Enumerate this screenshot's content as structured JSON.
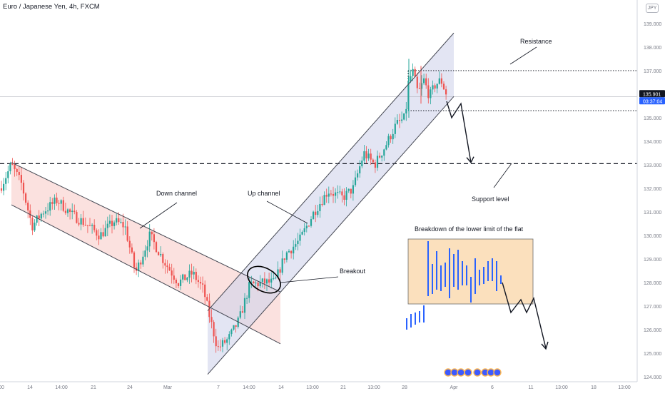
{
  "header": {
    "title": "Euro / Japanese Yen, 4h, FXCM",
    "currency_badge": "JPY"
  },
  "price_scale": {
    "ticks": [
      "139.000",
      "138.000",
      "137.000",
      "136.000",
      "135.000",
      "134.000",
      "133.000",
      "132.000",
      "131.000",
      "130.000",
      "129.000",
      "128.000",
      "127.000",
      "126.000",
      "125.000",
      "124.000"
    ],
    "last_price": "135.901",
    "countdown": "03:37:04"
  },
  "time_axis": {
    "ticks": [
      "00",
      "14",
      "14:00",
      "21",
      "24",
      "Mar",
      "7",
      "14:00",
      "14",
      "13:00",
      "21",
      "13:00",
      "28",
      "Apr",
      "6",
      "11",
      "13:00",
      "18",
      "13:00"
    ]
  },
  "annotations": {
    "down_channel": "Down channel",
    "up_channel": "Up channel",
    "breakout": "Breakout",
    "resistance": "Resistance",
    "support_level": "Support level",
    "flat_breakdown": "Breakdown of the lower limit of the flat"
  },
  "colors": {
    "up_candle": "#26a69a",
    "down_candle": "#ef5350",
    "down_channel_fill": "#f7c9c5",
    "up_channel_fill": "#d1d4eb",
    "flat_box_fill": "#fbe0bd",
    "scheme_bars": "#2962ff",
    "price_badge": "#131722",
    "countdown_badge": "#2962ff"
  },
  "chart_data": {
    "type": "candlestick",
    "title": "Euro / Japanese Yen, 4h, FXCM",
    "xlabel": "",
    "ylabel": "",
    "ylim": [
      123.9,
      139.7
    ],
    "grid": false,
    "x_ticks": [
      "00",
      "14",
      "14:00",
      "21",
      "24",
      "Mar",
      "7",
      "14:00",
      "14",
      "13:00",
      "21",
      "13:00",
      "28",
      "Apr",
      "6",
      "11",
      "13:00",
      "18",
      "13:00"
    ],
    "y_ticks": [
      124,
      125,
      126,
      127,
      128,
      129,
      130,
      131,
      132,
      133,
      134,
      135,
      136,
      137,
      138,
      139
    ],
    "last_price": 135.901,
    "price_path": [
      {
        "x": 0,
        "y": 132.0
      },
      {
        "x": 16,
        "y": 133.0
      },
      {
        "x": 30,
        "y": 132.2
      },
      {
        "x": 45,
        "y": 130.4
      },
      {
        "x": 60,
        "y": 131.0
      },
      {
        "x": 80,
        "y": 131.5
      },
      {
        "x": 100,
        "y": 130.9
      },
      {
        "x": 120,
        "y": 130.5
      },
      {
        "x": 140,
        "y": 130.0
      },
      {
        "x": 160,
        "y": 130.6
      },
      {
        "x": 175,
        "y": 130.4
      },
      {
        "x": 190,
        "y": 128.4
      },
      {
        "x": 210,
        "y": 130.0
      },
      {
        "x": 230,
        "y": 128.9
      },
      {
        "x": 250,
        "y": 128.0
      },
      {
        "x": 270,
        "y": 128.4
      },
      {
        "x": 285,
        "y": 127.7
      },
      {
        "x": 295,
        "y": 126.4
      },
      {
        "x": 305,
        "y": 125.2
      },
      {
        "x": 320,
        "y": 125.6
      },
      {
        "x": 335,
        "y": 126.4
      },
      {
        "x": 350,
        "y": 127.9
      },
      {
        "x": 370,
        "y": 128.0
      },
      {
        "x": 385,
        "y": 128.0
      },
      {
        "x": 400,
        "y": 129.2
      },
      {
        "x": 420,
        "y": 129.8
      },
      {
        "x": 440,
        "y": 131.0
      },
      {
        "x": 460,
        "y": 131.9
      },
      {
        "x": 480,
        "y": 131.6
      },
      {
        "x": 495,
        "y": 132.0
      },
      {
        "x": 510,
        "y": 133.5
      },
      {
        "x": 525,
        "y": 133.0
      },
      {
        "x": 540,
        "y": 133.8
      },
      {
        "x": 555,
        "y": 134.7
      },
      {
        "x": 568,
        "y": 135.0
      },
      {
        "x": 572,
        "y": 136.4
      },
      {
        "x": 578,
        "y": 137.0
      },
      {
        "x": 586,
        "y": 136.0
      },
      {
        "x": 594,
        "y": 136.6
      },
      {
        "x": 602,
        "y": 135.9
      },
      {
        "x": 610,
        "y": 136.4
      },
      {
        "x": 618,
        "y": 136.6
      },
      {
        "x": 627,
        "y": 135.9
      }
    ],
    "levels": [
      {
        "name": "Resistance",
        "y": 137.0,
        "style": "dotted"
      },
      {
        "name": "Support level",
        "y": 133.05,
        "style": "dashed"
      },
      {
        "name": "",
        "y": 135.3,
        "style": "dotted"
      }
    ],
    "channels": [
      {
        "name": "Down channel",
        "upper": [
          [
            16,
            133.1
          ],
          [
            393,
            127.6
          ]
        ],
        "lower": [
          [
            16,
            131.3
          ],
          [
            393,
            125.4
          ]
        ]
      },
      {
        "name": "Up channel",
        "upper": [
          [
            291,
            126.8
          ],
          [
            636,
            138.6
          ]
        ],
        "lower": [
          [
            291,
            124.1
          ],
          [
            636,
            135.9
          ]
        ]
      }
    ],
    "projection": [
      {
        "x": 626,
        "y": 135.7
      },
      {
        "x": 633,
        "y": 135.0
      },
      {
        "x": 646,
        "y": 135.6
      },
      {
        "x": 660,
        "y": 133.1
      }
    ]
  }
}
